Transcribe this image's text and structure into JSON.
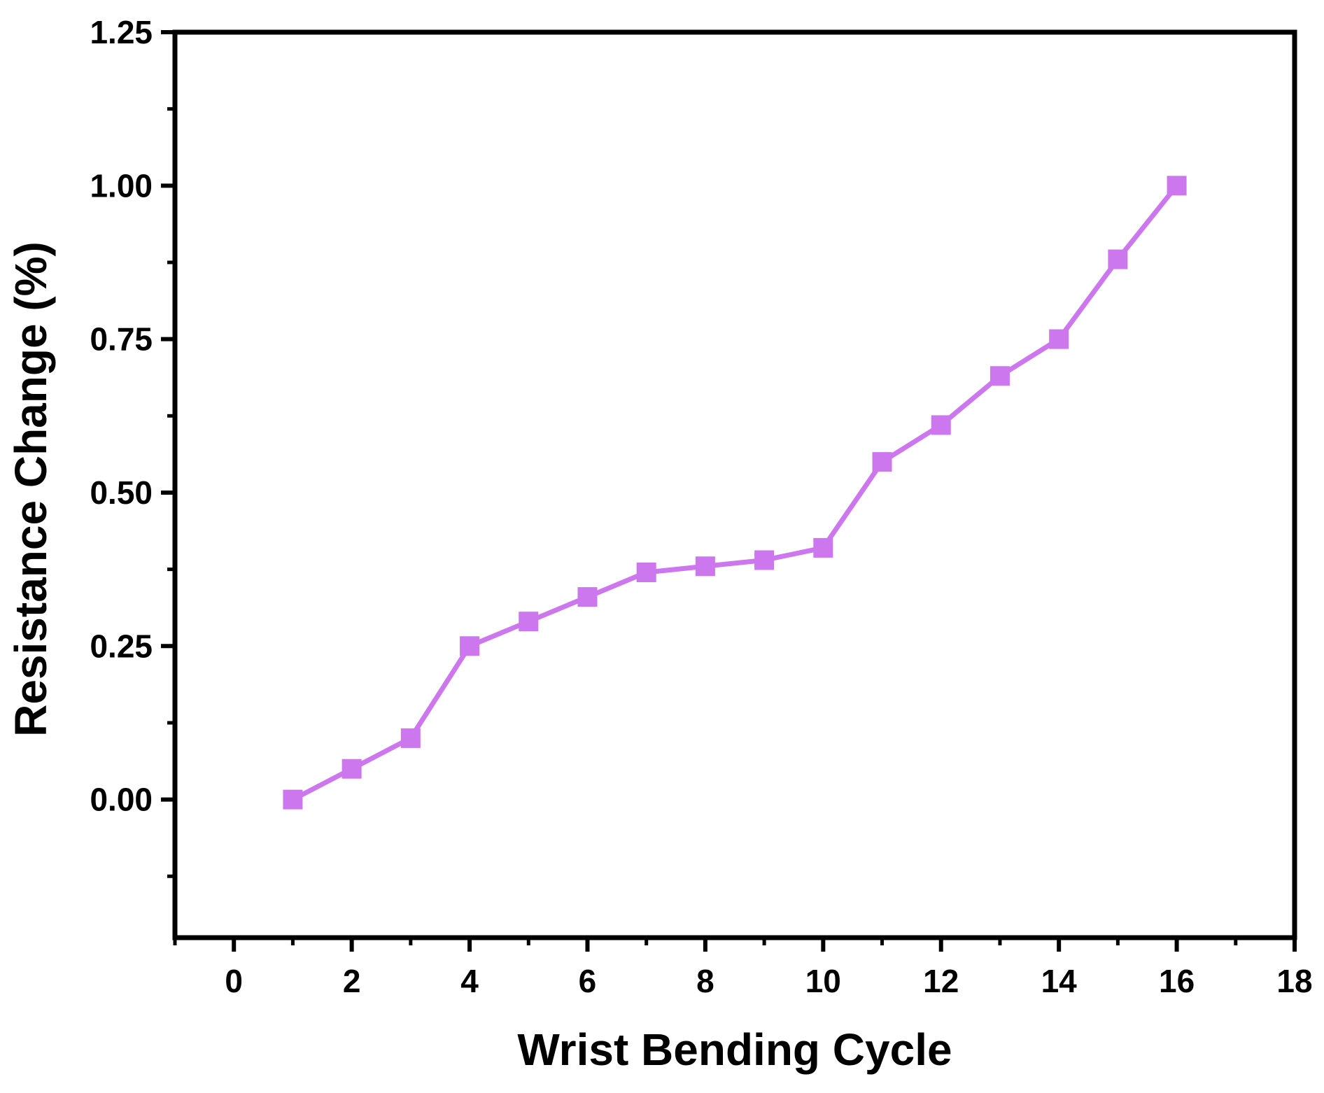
{
  "chart_data": {
    "type": "line",
    "title": "",
    "xlabel": "Wrist Bending Cycle",
    "ylabel": "Resistance Change (%)",
    "xlim": [
      -1,
      18
    ],
    "ylim": [
      -0.225,
      1.25
    ],
    "x_ticks": [
      0,
      2,
      4,
      6,
      8,
      10,
      12,
      14,
      16,
      18
    ],
    "x_tick_labels": [
      "0",
      "2",
      "4",
      "6",
      "8",
      "10",
      "12",
      "14",
      "16",
      "18"
    ],
    "y_ticks": [
      0.0,
      0.25,
      0.5,
      0.75,
      1.0,
      1.25
    ],
    "y_tick_labels": [
      "0.00",
      "0.25",
      "0.50",
      "0.75",
      "1.00",
      "1.25"
    ],
    "grid": false,
    "legend": "none",
    "marker": "square",
    "series": [
      {
        "color": "#cc77ee",
        "x": [
          1,
          2,
          3,
          4,
          5,
          6,
          7,
          8,
          9,
          10,
          11,
          12,
          13,
          14,
          15,
          16
        ],
        "y": [
          0.0,
          0.05,
          0.1,
          0.25,
          0.29,
          0.33,
          0.37,
          0.38,
          0.39,
          0.41,
          0.55,
          0.61,
          0.69,
          0.75,
          0.88,
          1.0
        ]
      }
    ]
  }
}
